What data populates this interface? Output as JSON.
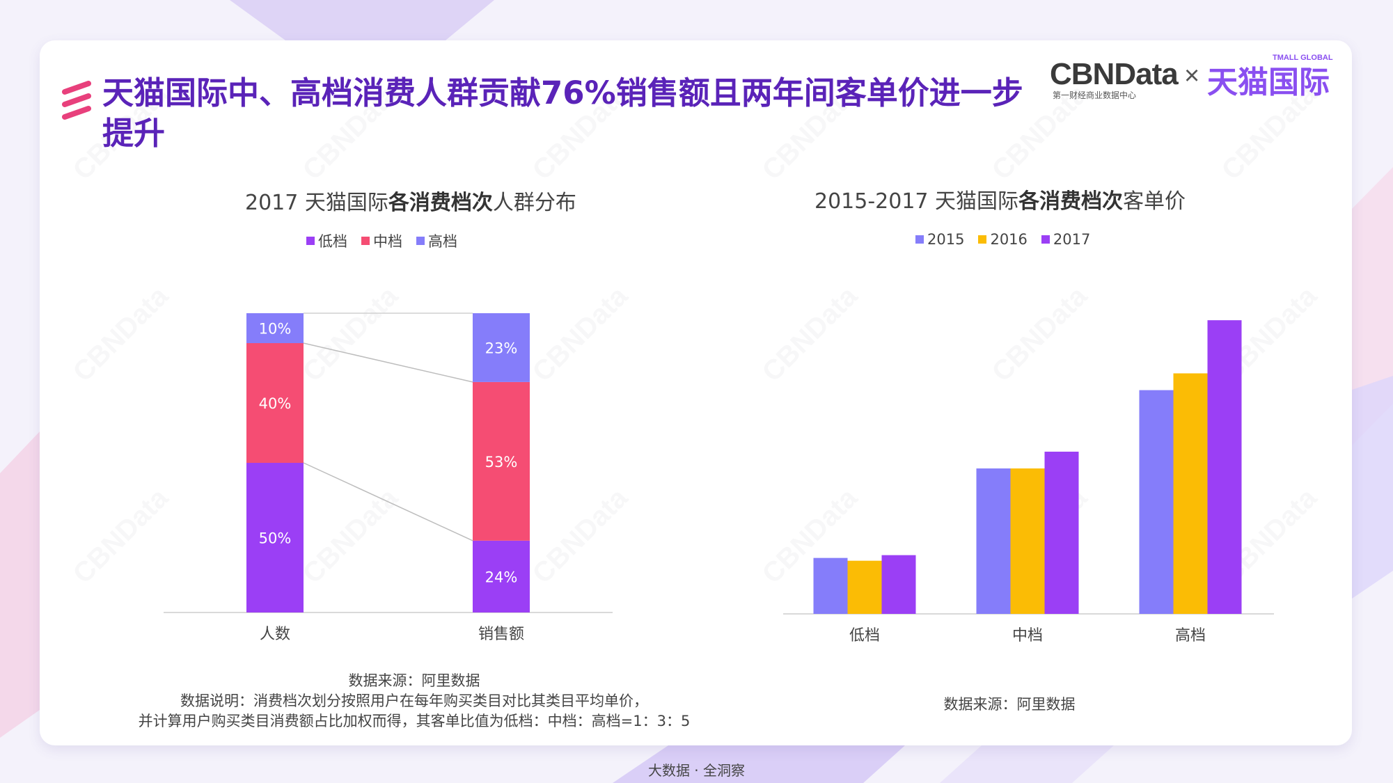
{
  "title": "天猫国际中、高档消费人群贡献76%销售额且两年间客单价进一步提升",
  "logo": {
    "brand": "CBNData",
    "brand_sub": "第一财经商业数据中心",
    "separator": "×",
    "partner": "天猫国际",
    "partner_en": "TMALL GLOBAL"
  },
  "watermark": "CBNData",
  "colors": {
    "title": "#5a23b8",
    "low": "#9b3ff5",
    "mid": "#f54d73",
    "high": "#857dfa",
    "y2015": "#857dfa",
    "y2016": "#fbbc05",
    "y2017": "#9b3ff5",
    "icon": "#e8407c"
  },
  "left": {
    "title_prefix": "2017 天猫国际",
    "title_bold": "各消费档次",
    "title_suffix": "人群分布",
    "note_source": "数据来源：阿里数据",
    "note_line1": "数据说明：消费档次划分按照用户在每年购买类目对比其类目平均单价，",
    "note_line2": "并计算用户购买类目消费额占比加权而得，其客单比值为低档：中档：高档=1：3：5"
  },
  "right": {
    "title_prefix": "2015-2017 天猫国际",
    "title_bold": "各消费档次",
    "title_suffix": "客单价",
    "note_source": "数据来源：阿里数据"
  },
  "footer": "大数据 · 全洞察",
  "chart_data": [
    {
      "type": "bar",
      "stacked": true,
      "categories": [
        "人数",
        "销售额"
      ],
      "series": [
        {
          "name": "低档",
          "values": [
            50,
            24
          ],
          "labels": [
            "50%",
            "24%"
          ],
          "color": "#9b3ff5"
        },
        {
          "name": "中档",
          "values": [
            40,
            53
          ],
          "labels": [
            "40%",
            "53%"
          ],
          "color": "#f54d73"
        },
        {
          "name": "高档",
          "values": [
            10,
            23
          ],
          "labels": [
            "10%",
            "23%"
          ],
          "color": "#857dfa"
        }
      ],
      "ylim": [
        0,
        100
      ],
      "legend": "top",
      "grid": false
    },
    {
      "type": "bar",
      "categories": [
        "低档",
        "中档",
        "高档"
      ],
      "series": [
        {
          "name": "2015",
          "values": [
            20,
            52,
            80
          ],
          "color": "#857dfa"
        },
        {
          "name": "2016",
          "values": [
            19,
            52,
            86
          ],
          "color": "#fbbc05"
        },
        {
          "name": "2017",
          "values": [
            21,
            58,
            105
          ],
          "color": "#9b3ff5"
        }
      ],
      "ylim": [
        0,
        110
      ],
      "axis_labels_shown": false,
      "legend": "top",
      "grid": false
    }
  ]
}
